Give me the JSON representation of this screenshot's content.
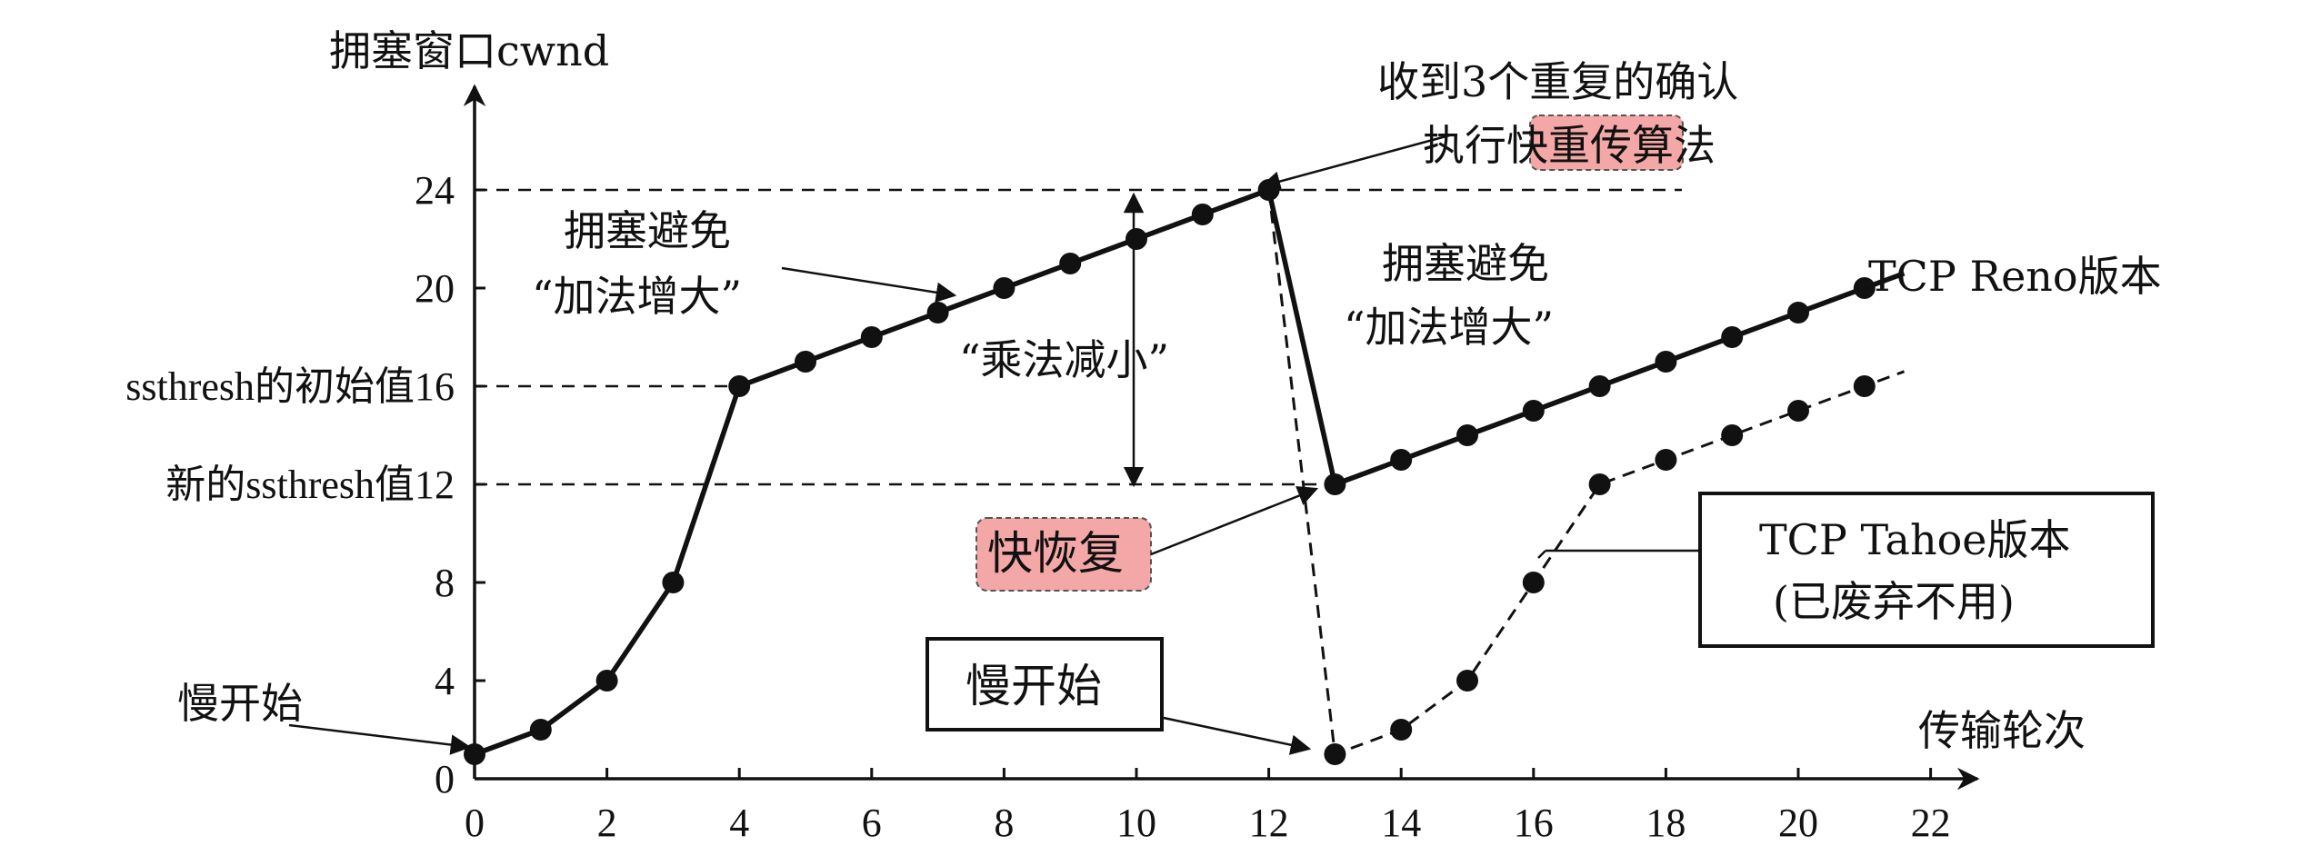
{
  "chart_data": {
    "type": "line",
    "xlabel": "传输轮次",
    "ylabel": "拥塞窗口cwnd",
    "xlim": [
      0,
      22
    ],
    "ylim": [
      0,
      26
    ],
    "x_ticks": [
      0,
      2,
      4,
      6,
      8,
      10,
      12,
      14,
      16,
      18,
      20,
      22
    ],
    "y_ticks": [
      0,
      4,
      8,
      20,
      24
    ],
    "y_tick_labels_special": [
      {
        "value": 16,
        "label": "ssthresh的初始值16"
      },
      {
        "value": 12,
        "label": "新的ssthresh值12"
      }
    ],
    "series": [
      {
        "name": "TCP Reno版本",
        "style": "solid",
        "points": [
          [
            0,
            1
          ],
          [
            1,
            2
          ],
          [
            2,
            4
          ],
          [
            3,
            8
          ],
          [
            4,
            16
          ],
          [
            5,
            17
          ],
          [
            6,
            18
          ],
          [
            7,
            19
          ],
          [
            8,
            20
          ],
          [
            9,
            21
          ],
          [
            10,
            22
          ],
          [
            11,
            23
          ],
          [
            12,
            24
          ],
          [
            13,
            12
          ],
          [
            14,
            13
          ],
          [
            15,
            14
          ],
          [
            16,
            15
          ],
          [
            17,
            16
          ],
          [
            18,
            17
          ],
          [
            19,
            18
          ],
          [
            20,
            19
          ],
          [
            21,
            20
          ]
        ]
      },
      {
        "name": "TCP Tahoe版本",
        "style": "dashed",
        "points": [
          [
            12,
            24
          ],
          [
            13,
            1
          ],
          [
            14,
            2
          ],
          [
            15,
            4
          ],
          [
            16,
            8
          ],
          [
            17,
            12
          ],
          [
            18,
            13
          ],
          [
            19,
            14
          ],
          [
            20,
            15
          ],
          [
            21,
            16
          ]
        ]
      }
    ],
    "annotations": {
      "slow_start_left": "慢开始",
      "ca1_line1": "拥塞避免",
      "ca1_line2": "“加法增大”",
      "md": "“乘法减小”",
      "dup_ack_line1": "收到3个重复的确认",
      "dup_ack_line2_pre": "执行",
      "dup_ack_line2_hl": "快重传",
      "dup_ack_line2_post": "算法",
      "ca2_line1": "拥塞避免",
      "ca2_line2": "“加法增大”",
      "fast_recovery": "快恢复",
      "slow_start_box": "慢开始",
      "reno_label": "TCP Reno版本",
      "tahoe_line1": "TCP Tahoe版本",
      "tahoe_line2": "(已废弃不用)"
    }
  },
  "colors": {
    "highlight": "#f4a7a7",
    "ink": "#111111"
  }
}
